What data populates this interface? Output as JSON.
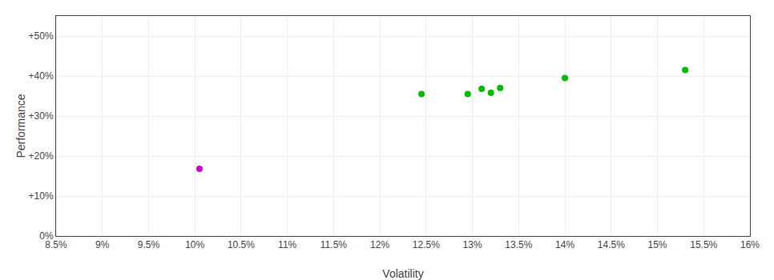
{
  "chart_data": {
    "type": "scatter",
    "xlabel": "Volatility",
    "ylabel": "Performance",
    "series": [
      {
        "color": "#00bb00",
        "marker": "circle",
        "x": [
          0.1245,
          0.1295,
          0.131,
          0.132,
          0.133,
          0.14,
          0.153
        ],
        "values": [
          0.355,
          0.355,
          0.368,
          0.358,
          0.37,
          0.395,
          0.415
        ]
      },
      {
        "color": "#cc00cc",
        "marker": "circle",
        "x": [
          0.1005
        ],
        "values": [
          0.168
        ]
      }
    ],
    "xlim": [
      0.085,
      0.16
    ],
    "ylim": [
      0.0,
      0.55
    ],
    "xticks": [
      {
        "value": 0.085,
        "label": "8.5%"
      },
      {
        "value": 0.09,
        "label": "9%"
      },
      {
        "value": 0.095,
        "label": "9.5%"
      },
      {
        "value": 0.1,
        "label": "10%"
      },
      {
        "value": 0.105,
        "label": "10.5%"
      },
      {
        "value": 0.11,
        "label": "11%"
      },
      {
        "value": 0.115,
        "label": "11.5%"
      },
      {
        "value": 0.12,
        "label": "12%"
      },
      {
        "value": 0.125,
        "label": "12.5%"
      },
      {
        "value": 0.13,
        "label": "13%"
      },
      {
        "value": 0.135,
        "label": "13.5%"
      },
      {
        "value": 0.14,
        "label": "14%"
      },
      {
        "value": 0.145,
        "label": "14.5%"
      },
      {
        "value": 0.15,
        "label": "15%"
      },
      {
        "value": 0.155,
        "label": "15.5%"
      },
      {
        "value": 0.16,
        "label": "16%"
      }
    ],
    "yticks": [
      {
        "value": 0.0,
        "label": "0%"
      },
      {
        "value": 0.1,
        "label": "+10%"
      },
      {
        "value": 0.2,
        "label": "+20%"
      },
      {
        "value": 0.3,
        "label": "+30%"
      },
      {
        "value": 0.4,
        "label": "+40%"
      },
      {
        "value": 0.5,
        "label": "+50%"
      }
    ],
    "grid": true
  }
}
